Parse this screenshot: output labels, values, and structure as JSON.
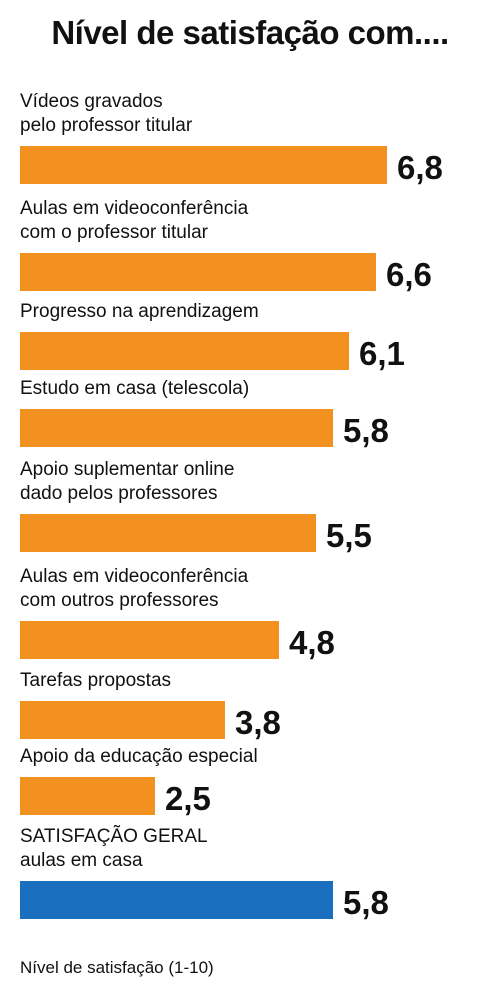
{
  "title": "Nível de satisfação com....",
  "footnote": "Nível de satisfação (1-10)",
  "colors": {
    "bar": "#f39120",
    "highlight": "#1a6fbe"
  },
  "chart_data": {
    "type": "bar",
    "orientation": "horizontal",
    "title": "Nível de satisfação com....",
    "xlabel": "Nível de satisfação (1-10)",
    "xlim": [
      0,
      10
    ],
    "categories": [
      "Vídeos gravados\npelo professor titular",
      "Aulas em videoconferência\ncom o professor titular",
      "Progresso na aprendizagem",
      "Estudo em casa (telescola)",
      "Apoio suplementar online\ndado pelos professores",
      "Aulas em videoconferência\ncom outros professores",
      "Tarefas propostas",
      "Apoio da educação especial",
      "SATISFAÇÃO GERAL\naulas em casa"
    ],
    "values": [
      6.8,
      6.6,
      6.1,
      5.8,
      5.5,
      4.8,
      3.8,
      2.5,
      5.8
    ],
    "value_labels": [
      "6,8",
      "6,6",
      "6,1",
      "5,8",
      "5,5",
      "4,8",
      "3,8",
      "2,5",
      "5,8"
    ],
    "highlight": [
      false,
      false,
      false,
      false,
      false,
      false,
      false,
      false,
      true
    ]
  }
}
